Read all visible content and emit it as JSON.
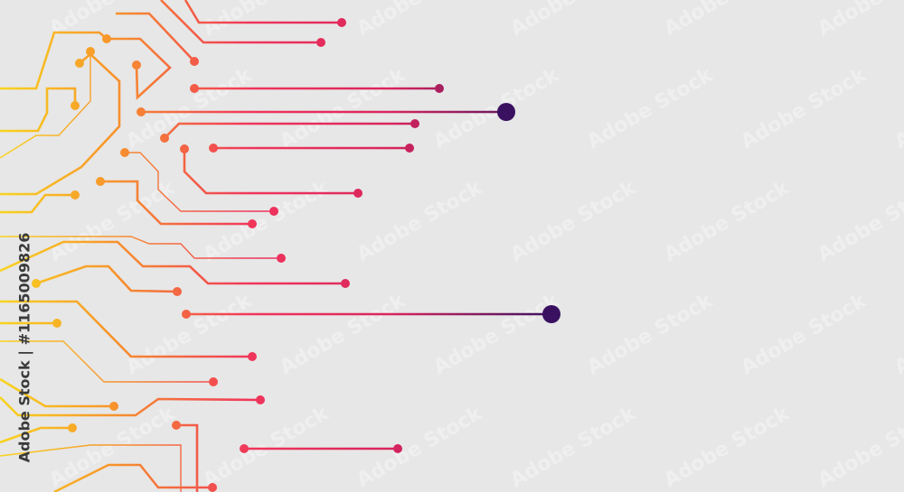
{
  "watermark": "Adobe Stock | #1165009826",
  "watermark_tile": "Adobe Stock"
}
